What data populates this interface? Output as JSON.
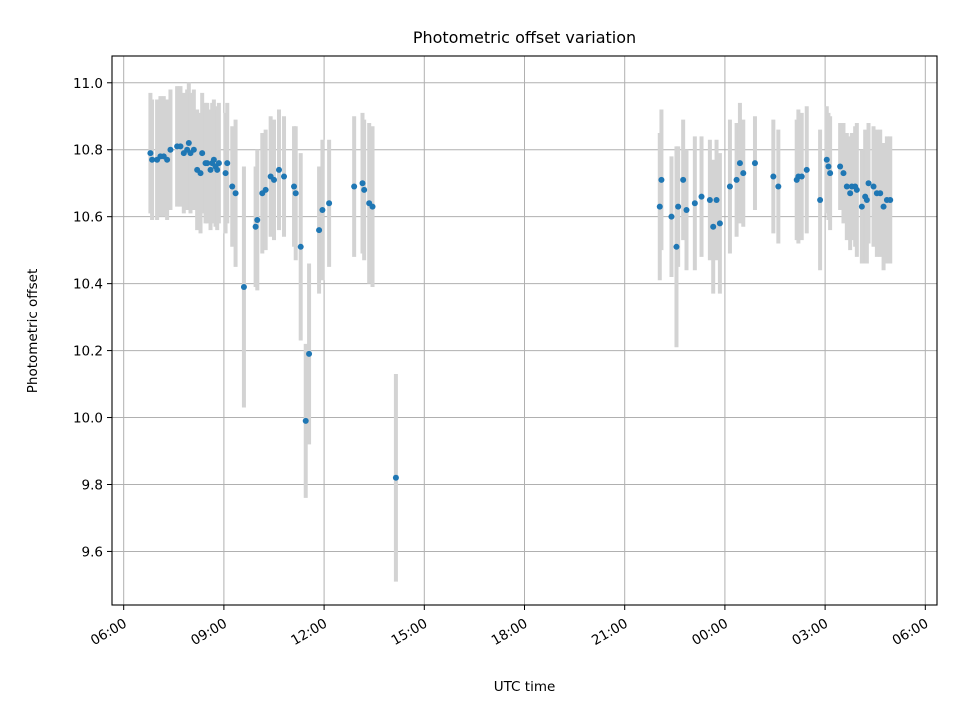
{
  "chart_data": {
    "type": "scatter",
    "title": "Photometric offset variation",
    "xlabel": "UTC time",
    "ylabel": "Photometric offset",
    "x_tick_labels": [
      "06:00",
      "09:00",
      "12:00",
      "15:00",
      "18:00",
      "21:00",
      "00:00",
      "03:00",
      "06:00"
    ],
    "y_tick_labels": [
      "9.6",
      "9.8",
      "10.0",
      "10.2",
      "10.4",
      "10.6",
      "10.8",
      "11.0"
    ],
    "y_ticks": [
      9.6,
      9.8,
      10.0,
      10.2,
      10.4,
      10.6,
      10.8,
      11.0
    ],
    "ylim": [
      9.44,
      11.08
    ],
    "xlim_hours": [
      5.65,
      30.35
    ],
    "grid": true,
    "colors": {
      "marker": "#1f77b4",
      "errorbar": "#d3d3d3",
      "grid": "#b0b0b0"
    },
    "series": [
      {
        "x_hours": [
          6.8,
          6.85,
          7.0,
          7.1,
          7.2,
          7.3,
          7.4,
          7.6,
          7.7,
          7.8,
          7.9,
          7.95,
          8.0,
          8.1,
          8.2,
          8.3,
          8.35,
          8.45,
          8.5,
          8.6,
          8.65,
          8.7,
          8.75,
          8.8,
          8.85,
          9.05,
          9.1,
          9.25,
          9.35,
          9.6,
          9.95,
          10.0,
          10.15,
          10.25,
          10.4,
          10.5,
          10.65,
          10.8,
          11.1,
          11.15,
          11.3,
          11.45,
          11.55,
          11.85,
          11.95,
          12.15,
          12.9,
          13.15,
          13.2,
          13.35,
          13.45,
          14.15,
          22.05,
          22.1,
          22.4,
          22.55,
          22.6,
          22.75,
          22.85,
          23.1,
          23.3,
          23.55,
          23.65,
          23.75,
          23.85,
          24.15,
          24.35,
          24.45,
          24.55,
          24.9,
          25.45,
          25.6,
          26.15,
          26.2,
          26.3,
          26.45,
          26.85,
          27.05,
          27.1,
          27.15,
          27.45,
          27.55,
          27.65,
          27.75,
          27.8,
          27.9,
          27.95,
          28.1,
          28.2,
          28.25,
          28.3,
          28.45,
          28.55,
          28.65,
          28.75,
          28.85,
          28.95
        ],
        "y": [
          10.79,
          10.77,
          10.77,
          10.78,
          10.78,
          10.77,
          10.8,
          10.81,
          10.81,
          10.79,
          10.8,
          10.82,
          10.79,
          10.8,
          10.74,
          10.73,
          10.79,
          10.76,
          10.76,
          10.74,
          10.76,
          10.77,
          10.75,
          10.74,
          10.76,
          10.73,
          10.76,
          10.69,
          10.67,
          10.39,
          10.57,
          10.59,
          10.67,
          10.68,
          10.72,
          10.71,
          10.74,
          10.72,
          10.69,
          10.67,
          10.51,
          9.99,
          10.19,
          10.56,
          10.62,
          10.64,
          10.69,
          10.7,
          10.68,
          10.64,
          10.63,
          9.82,
          10.63,
          10.71,
          10.6,
          10.51,
          10.63,
          10.71,
          10.62,
          10.64,
          10.66,
          10.65,
          10.57,
          10.65,
          10.58,
          10.69,
          10.71,
          10.76,
          10.73,
          10.76,
          10.72,
          10.69,
          10.71,
          10.72,
          10.72,
          10.74,
          10.65,
          10.77,
          10.75,
          10.73,
          10.75,
          10.73,
          10.69,
          10.67,
          10.69,
          10.69,
          10.68,
          10.63,
          10.66,
          10.65,
          10.7,
          10.69,
          10.67,
          10.67,
          10.63,
          10.65,
          10.65
        ],
        "err": [
          0.18,
          0.18,
          0.18,
          0.18,
          0.18,
          0.18,
          0.18,
          0.18,
          0.18,
          0.18,
          0.18,
          0.18,
          0.18,
          0.18,
          0.18,
          0.18,
          0.18,
          0.18,
          0.18,
          0.18,
          0.18,
          0.18,
          0.18,
          0.18,
          0.18,
          0.18,
          0.18,
          0.18,
          0.22,
          0.36,
          0.18,
          0.21,
          0.18,
          0.18,
          0.18,
          0.18,
          0.18,
          0.18,
          0.18,
          0.2,
          0.28,
          0.23,
          0.27,
          0.19,
          0.21,
          0.19,
          0.21,
          0.21,
          0.21,
          0.24,
          0.24,
          0.31,
          0.22,
          0.21,
          0.18,
          0.3,
          0.18,
          0.18,
          0.18,
          0.2,
          0.18,
          0.18,
          0.2,
          0.18,
          0.21,
          0.2,
          0.17,
          0.18,
          0.16,
          0.14,
          0.17,
          0.17,
          0.18,
          0.2,
          0.19,
          0.19,
          0.21,
          0.16,
          0.16,
          0.17,
          0.13,
          0.15,
          0.16,
          0.17,
          0.16,
          0.18,
          0.2,
          0.17,
          0.2,
          0.19,
          0.18,
          0.18,
          0.19,
          0.19,
          0.19,
          0.19,
          0.19
        ]
      }
    ]
  }
}
